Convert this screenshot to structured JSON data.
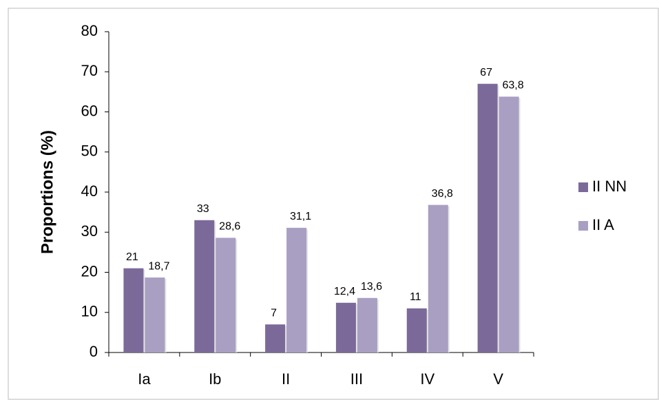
{
  "chart_data": {
    "type": "bar",
    "y_label": "Proportions (%)",
    "categories": [
      "Ia",
      "Ib",
      "II",
      "III",
      "IV",
      "V"
    ],
    "series": [
      {
        "name": "II NN",
        "color": "#7b6a99",
        "values": [
          21,
          33,
          7,
          12.4,
          11,
          67
        ],
        "value_labels": [
          "21",
          "33",
          "7",
          "12,4",
          "11",
          "67"
        ]
      },
      {
        "name": "II A",
        "color": "#a99fc2",
        "values": [
          18.7,
          28.6,
          31.1,
          13.6,
          36.8,
          63.8
        ],
        "value_labels": [
          "18,7",
          "28,6",
          "31,1",
          "13,6",
          "36,8",
          "63,8"
        ]
      }
    ],
    "ylim": [
      0,
      80
    ],
    "yticks": [
      0,
      10,
      20,
      30,
      40,
      50,
      60,
      70,
      80
    ],
    "legend": "right"
  }
}
